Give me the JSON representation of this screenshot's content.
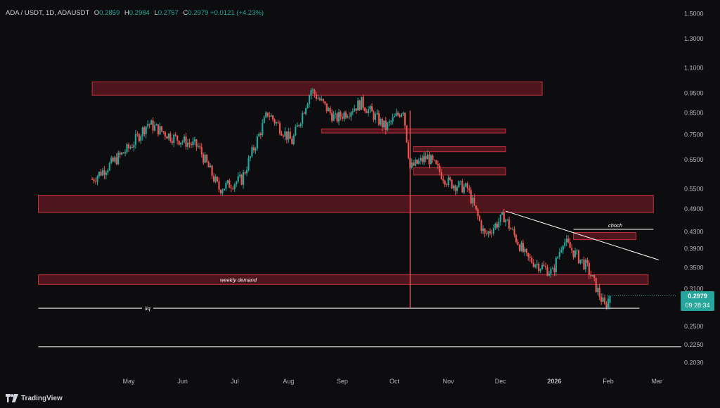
{
  "header": {
    "symbol": "ADA / USDT, 1D, ADAUSDT",
    "open_label": "O",
    "open": "0.2859",
    "high_label": "H",
    "high": "0.2984",
    "low_label": "L",
    "low": "0.2757",
    "close_label": "C",
    "close": "0.2979",
    "change": "+0.0121 (+4.23%)"
  },
  "last_price": {
    "price": "0.2979",
    "countdown": "09:28:34",
    "color": "#26a69a"
  },
  "footer": {
    "brand": "TradingView"
  },
  "colors": {
    "up": "#26a69a",
    "down": "#ef5350",
    "zone_fill": "#5c1820",
    "zone_border": "#c2303e",
    "background": "#0d0d0f"
  },
  "chart_data": {
    "type": "candlestick",
    "symbol": "ADAUSDT",
    "interval": "1D",
    "y_scale": "log",
    "y_ticks": [
      "1.5000",
      "1.3000",
      "1.1000",
      "0.9500",
      "0.8500",
      "0.7500",
      "0.6500",
      "0.5500",
      "0.4900",
      "0.4300",
      "0.3900",
      "0.3500",
      "0.3100",
      "0.2500",
      "0.2250",
      "0.2030"
    ],
    "x_ticks": [
      "May",
      "Jun",
      "Jul",
      "Aug",
      "Sep",
      "Oct",
      "Nov",
      "Dec",
      "2026",
      "Feb",
      "Mar"
    ],
    "price_path": [
      {
        "date": "2025-04-10",
        "price": 0.58
      },
      {
        "date": "2025-04-20",
        "price": 0.63
      },
      {
        "date": "2025-05-02",
        "price": 0.7
      },
      {
        "date": "2025-05-12",
        "price": 0.8
      },
      {
        "date": "2025-05-26",
        "price": 0.74
      },
      {
        "date": "2025-06-10",
        "price": 0.7
      },
      {
        "date": "2025-06-22",
        "price": 0.55
      },
      {
        "date": "2025-07-05",
        "price": 0.58
      },
      {
        "date": "2025-07-20",
        "price": 0.85
      },
      {
        "date": "2025-08-03",
        "price": 0.72
      },
      {
        "date": "2025-08-14",
        "price": 0.97
      },
      {
        "date": "2025-08-28",
        "price": 0.82
      },
      {
        "date": "2025-09-12",
        "price": 0.9
      },
      {
        "date": "2025-09-26",
        "price": 0.78
      },
      {
        "date": "2025-10-06",
        "price": 0.87
      },
      {
        "date": "2025-10-10",
        "price": 0.62
      },
      {
        "date": "2025-10-20",
        "price": 0.66
      },
      {
        "date": "2025-11-01",
        "price": 0.57
      },
      {
        "date": "2025-11-12",
        "price": 0.55
      },
      {
        "date": "2025-11-22",
        "price": 0.42
      },
      {
        "date": "2025-12-03",
        "price": 0.47
      },
      {
        "date": "2025-12-16",
        "price": 0.37
      },
      {
        "date": "2025-12-31",
        "price": 0.34
      },
      {
        "date": "2026-01-06",
        "price": 0.41
      },
      {
        "date": "2026-01-20",
        "price": 0.35
      },
      {
        "date": "2026-01-30",
        "price": 0.28
      },
      {
        "date": "2026-02-02",
        "price": 0.2979
      }
    ],
    "zones": [
      {
        "from": "2025-04-10",
        "to": "2025-12-25",
        "low": 0.94,
        "high": 1.015,
        "label": ""
      },
      {
        "from": "2025-08-20",
        "to": "2025-12-04",
        "low": 0.757,
        "high": 0.775,
        "label": ""
      },
      {
        "from": "2025-10-12",
        "to": "2025-12-04",
        "low": 0.68,
        "high": 0.7,
        "label": ""
      },
      {
        "from": "2025-10-12",
        "to": "2025-12-04",
        "low": 0.595,
        "high": 0.62,
        "label": ""
      },
      {
        "from": "2025-03-10",
        "to": "2026-02-27",
        "low": 0.48,
        "high": 0.53,
        "label": ""
      },
      {
        "from": "2026-01-12",
        "to": "2026-02-17",
        "low": 0.411,
        "high": 0.428,
        "label": ""
      },
      {
        "from": "2025-03-10",
        "to": "2026-02-24",
        "low": 0.318,
        "high": 0.336,
        "label": "weekly demand"
      }
    ],
    "lines": [
      {
        "kind": "trendline",
        "from": {
          "date": "2025-12-04",
          "price": 0.484
        },
        "to": {
          "date": "2026-03-02",
          "price": 0.366
        },
        "label": ""
      },
      {
        "kind": "horizontal",
        "from": {
          "date": "2026-01-12",
          "price": 0.436
        },
        "to": {
          "date": "2026-02-27",
          "price": 0.436
        },
        "label": "choch"
      },
      {
        "kind": "horizontal",
        "from": {
          "date": "2025-03-10",
          "price": 0.2775
        },
        "to": {
          "date": "2026-02-19",
          "price": 0.2775
        },
        "label": "liq"
      },
      {
        "kind": "horizontal",
        "from": {
          "date": "2025-03-10",
          "price": 0.2225
        },
        "to": {
          "date": "2026-03-15",
          "price": 0.2225
        },
        "label": ""
      },
      {
        "kind": "vertical",
        "date": "2025-10-10",
        "from_price": 0.2775,
        "to_price": 0.86,
        "label": ""
      }
    ]
  }
}
